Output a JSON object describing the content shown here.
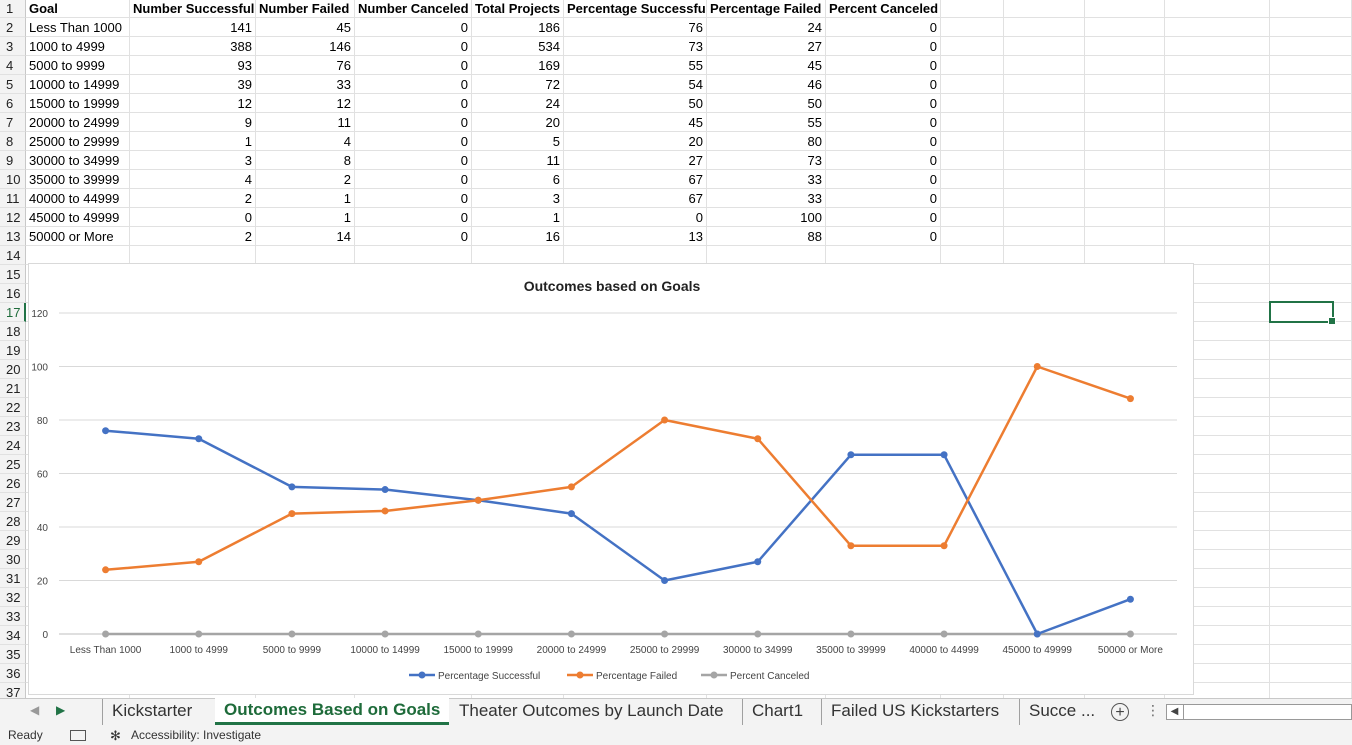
{
  "sheet": {
    "headers": [
      "Goal",
      "Number Successful",
      "Number Failed",
      "Number Canceled",
      "Total Projects",
      "Percentage Successful",
      "Percentage Failed",
      "Percent Canceled"
    ],
    "rows": [
      [
        "Less Than 1000",
        "141",
        "45",
        "0",
        "186",
        "76",
        "24",
        "0"
      ],
      [
        "1000 to 4999",
        "388",
        "146",
        "0",
        "534",
        "73",
        "27",
        "0"
      ],
      [
        "5000 to 9999",
        "93",
        "76",
        "0",
        "169",
        "55",
        "45",
        "0"
      ],
      [
        "10000 to 14999",
        "39",
        "33",
        "0",
        "72",
        "54",
        "46",
        "0"
      ],
      [
        "15000 to 19999",
        "12",
        "12",
        "0",
        "24",
        "50",
        "50",
        "0"
      ],
      [
        "20000 to 24999",
        "9",
        "11",
        "0",
        "20",
        "45",
        "55",
        "0"
      ],
      [
        "25000 to 29999",
        "1",
        "4",
        "0",
        "5",
        "20",
        "80",
        "0"
      ],
      [
        "30000 to 34999",
        "3",
        "8",
        "0",
        "11",
        "27",
        "73",
        "0"
      ],
      [
        "35000 to 39999",
        "4",
        "2",
        "0",
        "6",
        "67",
        "33",
        "0"
      ],
      [
        "40000 to 44999",
        "2",
        "1",
        "0",
        "3",
        "67",
        "33",
        "0"
      ],
      [
        "45000 to 49999",
        "0",
        "1",
        "0",
        "1",
        "0",
        "100",
        "0"
      ],
      [
        "50000 or More",
        "2",
        "14",
        "0",
        "16",
        "13",
        "88",
        "0"
      ]
    ],
    "row_numbers": [
      "1",
      "2",
      "3",
      "4",
      "5",
      "6",
      "7",
      "8",
      "9",
      "10",
      "11",
      "12",
      "13",
      "14",
      "15",
      "16",
      "17",
      "18",
      "19",
      "20",
      "21",
      "22",
      "23",
      "24",
      "25",
      "26",
      "27",
      "28",
      "29",
      "30",
      "31",
      "32",
      "33",
      "34",
      "35",
      "36",
      "37"
    ]
  },
  "chart_data": {
    "type": "line",
    "title": "Outcomes based on Goals",
    "categories": [
      "Less Than 1000",
      "1000 to 4999",
      "5000 to 9999",
      "10000 to 14999",
      "15000 to 19999",
      "20000 to 24999",
      "25000 to 29999",
      "30000 to 34999",
      "35000 to 39999",
      "40000 to 44999",
      "45000 to 49999",
      "50000 or More"
    ],
    "series": [
      {
        "name": "Percentage Successful",
        "values": [
          76,
          73,
          55,
          54,
          50,
          45,
          20,
          27,
          67,
          67,
          0,
          13
        ],
        "color": "#4472c4"
      },
      {
        "name": "Percentage Failed",
        "values": [
          24,
          27,
          45,
          46,
          50,
          55,
          80,
          73,
          33,
          33,
          100,
          88
        ],
        "color": "#ed7d31"
      },
      {
        "name": "Percent Canceled",
        "values": [
          0,
          0,
          0,
          0,
          0,
          0,
          0,
          0,
          0,
          0,
          0,
          0
        ],
        "color": "#a5a5a5"
      }
    ],
    "yticks": [
      "0",
      "20",
      "40",
      "60",
      "80",
      "100",
      "120"
    ],
    "ylim": [
      0,
      120
    ],
    "grid": true,
    "legend": "bottom"
  },
  "tabs": {
    "items": [
      "Kickstarter",
      "Outcomes Based on Goals",
      "Theater Outcomes by Launch Date",
      "Chart1",
      "Failed US Kickstarters",
      "Succe ..."
    ],
    "add_icon": "plus-circle-icon",
    "more_icon": "more-vertical-icon"
  },
  "status": {
    "ready": "Ready",
    "accessibility": "Accessibility: Investigate",
    "macro_icon": "macro-record-icon",
    "accessibility_icon": "accessibility-icon"
  }
}
